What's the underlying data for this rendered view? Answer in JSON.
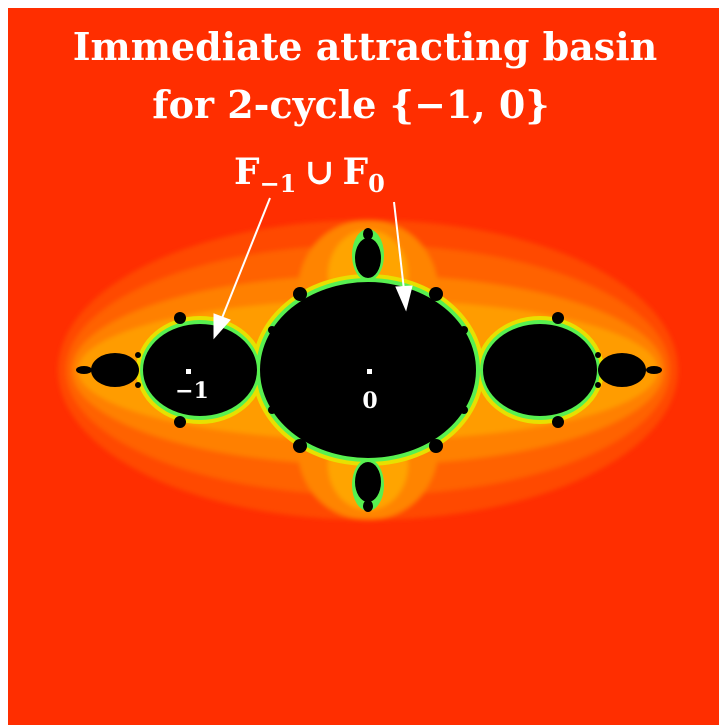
{
  "title": {
    "line1": "Immediate attracting basin",
    "line2": "for 2-cycle {−1, 0}"
  },
  "annotation": {
    "F": "F",
    "sub1": "−1",
    "union": "∪",
    "sub2": "0"
  },
  "points": [
    {
      "label": "−1"
    },
    {
      "label": "0"
    }
  ],
  "colors": {
    "background": "#ff2e00",
    "bands": [
      "#ff4a00",
      "#ff6a00",
      "#ff8a00",
      "#ffaa00",
      "#ffd000",
      "#d8f000",
      "#40f060"
    ],
    "filled_set": "#000000",
    "text": "#ffffff"
  }
}
